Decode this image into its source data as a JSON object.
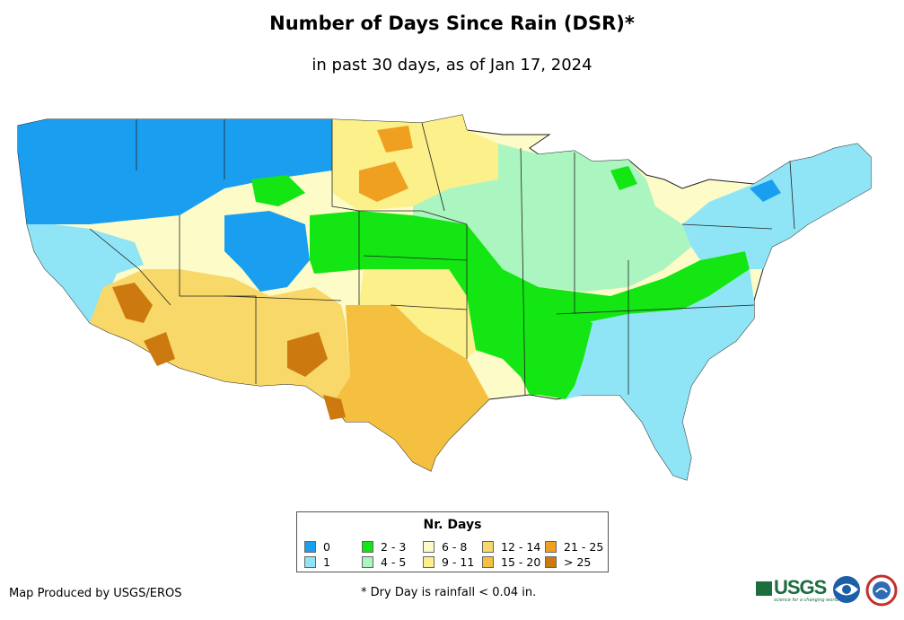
{
  "title": "Number of Days Since Rain (DSR)*",
  "subtitle": "in past 30 days, as of Jan 17, 2024",
  "legend": {
    "title": "Nr. Days",
    "items": [
      {
        "label": "0",
        "color": "#1a9ff0"
      },
      {
        "label": "1",
        "color": "#8fe5f5"
      },
      {
        "label": "2 - 3",
        "color": "#13e613"
      },
      {
        "label": "4 - 5",
        "color": "#aaf5c0"
      },
      {
        "label": "6 - 8",
        "color": "#fdfbc8"
      },
      {
        "label": "9 - 11",
        "color": "#fbf08a"
      },
      {
        "label": "12 - 14",
        "color": "#f9d86a"
      },
      {
        "label": "15 - 20",
        "color": "#f5c040"
      },
      {
        "label": "21 - 25",
        "color": "#f0a020"
      },
      {
        "label": "> 25",
        "color": "#cc7a10"
      }
    ]
  },
  "credit": "Map Produced by USGS/EROS",
  "footnote": "* Dry Day is rainfall < 0.04 in.",
  "logos": {
    "usgs": "USGS",
    "usgs_tagline": "science for a changing world",
    "noaa": "noaa-logo",
    "nws": "nws-logo"
  }
}
